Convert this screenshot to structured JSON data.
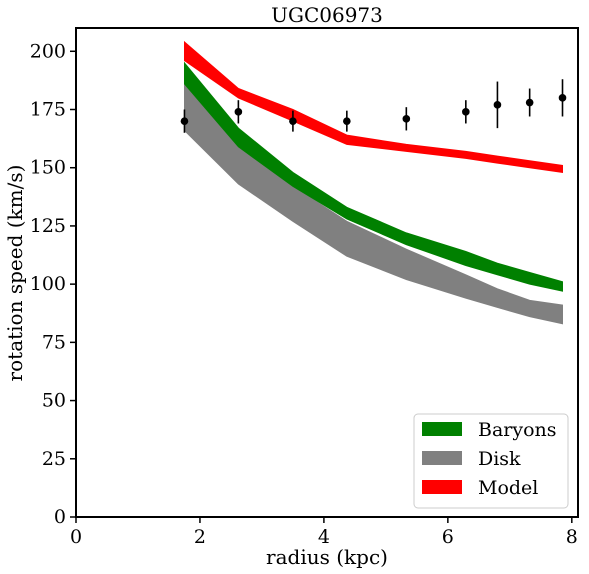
{
  "chart_data": {
    "type": "area",
    "title": "UGC06973",
    "xlabel": "radius (kpc)",
    "ylabel": "rotation speed (km/s)",
    "xlim": [
      0,
      8.1
    ],
    "ylim": [
      0,
      210
    ],
    "xticks": [
      "0",
      "2",
      "4",
      "6",
      "8"
    ],
    "yticks": [
      "0",
      "25",
      "50",
      "75",
      "100",
      "125",
      "150",
      "175",
      "200"
    ],
    "grid": false,
    "legend_position": "lower-right",
    "radius": [
      1.75,
      2.62,
      3.5,
      4.37,
      5.33,
      6.29,
      6.8,
      7.32,
      7.85
    ],
    "bands": [
      {
        "name": "Disk",
        "color": "#808080",
        "lower": [
          166,
          143,
          127,
          112,
          102,
          94,
          90,
          86,
          83
        ],
        "upper": [
          186,
          160,
          142,
          127,
          115,
          104,
          98,
          93,
          91
        ]
      },
      {
        "name": "Baryons",
        "color": "#008000",
        "lower": [
          186,
          159,
          142,
          128,
          117,
          108,
          104,
          100,
          97
        ],
        "upper": [
          195,
          167,
          148,
          133,
          122,
          114,
          109,
          105,
          101
        ]
      },
      {
        "name": "Model",
        "color": "#ff0000",
        "lower": [
          196,
          180,
          170,
          160,
          157,
          154,
          152,
          150,
          148
        ],
        "upper": [
          204,
          184,
          175,
          164,
          160,
          157,
          155,
          153,
          151
        ]
      }
    ],
    "observed": {
      "radius": [
        1.75,
        2.62,
        3.5,
        4.37,
        5.33,
        6.29,
        6.8,
        7.32,
        7.85
      ],
      "speed": [
        170,
        174,
        170,
        170,
        171,
        174,
        177,
        178,
        180
      ],
      "error": [
        5,
        5,
        4.5,
        4.5,
        5,
        5,
        10,
        6,
        8
      ]
    },
    "legend": [
      "Baryons",
      "Disk",
      "Model"
    ]
  }
}
